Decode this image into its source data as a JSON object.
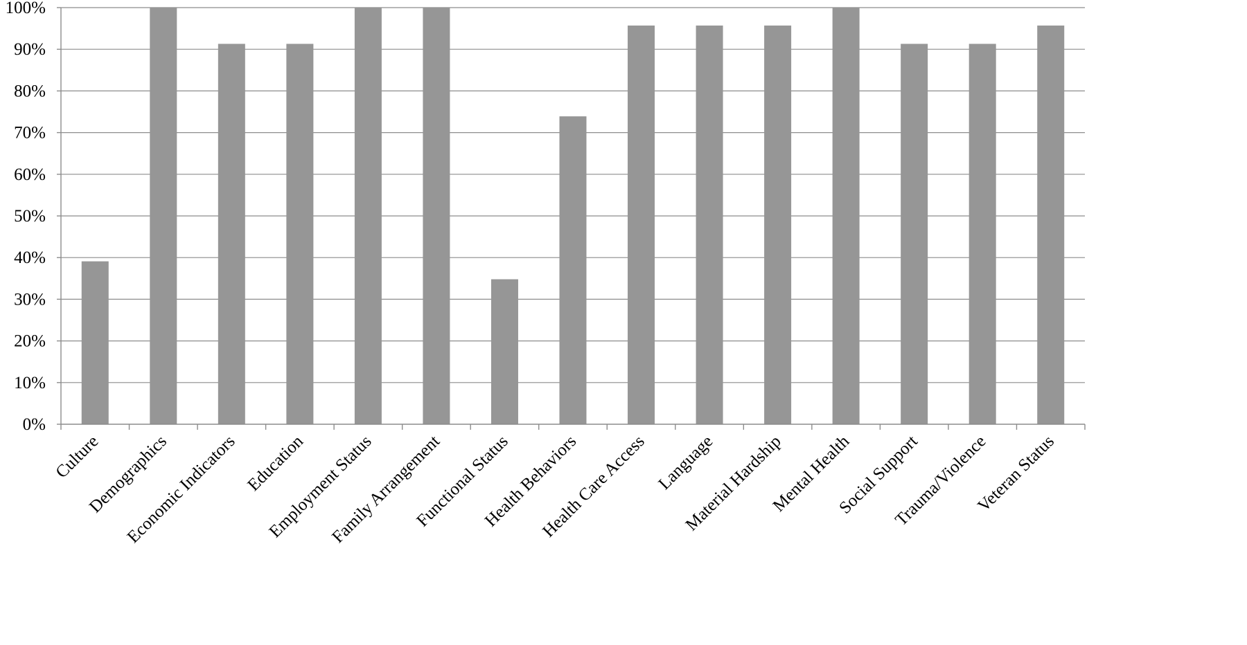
{
  "chart_data": {
    "type": "bar",
    "categories": [
      "Culture",
      "Demographics",
      "Economic Indicators",
      "Education",
      "Employment Status",
      "Family Arrangement",
      "Functional Status",
      "Health Behaviors",
      "Health Care Access",
      "Language",
      "Material Hardship",
      "Mental Health",
      "Social Support",
      "Trauma/Violence",
      "Veteran Status"
    ],
    "values": [
      39.1,
      100,
      91.3,
      91.3,
      100,
      100,
      34.8,
      73.9,
      95.7,
      95.7,
      95.7,
      100,
      91.3,
      91.3,
      95.7
    ],
    "ylim": [
      0,
      100
    ],
    "yticks": [
      "0%",
      "10%",
      "20%",
      "30%",
      "40%",
      "50%",
      "60%",
      "70%",
      "80%",
      "90%",
      "100%"
    ],
    "grid": true,
    "legend": false,
    "bar_color": "#969696",
    "grid_color": "#8c8c8c",
    "title": "",
    "xlabel": "",
    "ylabel": ""
  }
}
